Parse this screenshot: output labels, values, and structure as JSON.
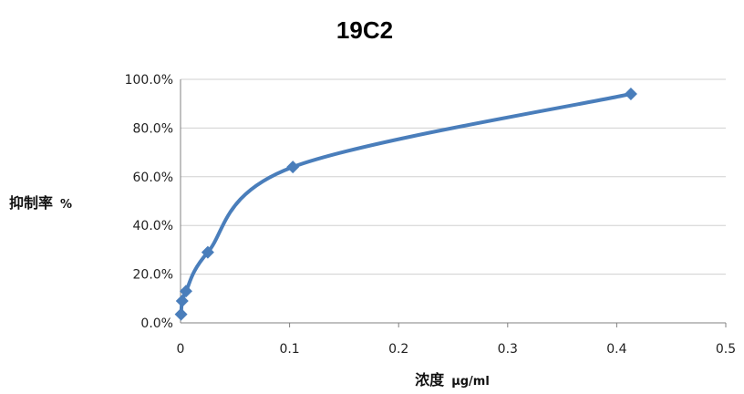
{
  "chart_data": {
    "type": "scatter",
    "title": "19C2",
    "xlabel": "浓度",
    "xlabel_unit": "μg/ml",
    "ylabel": "抑制率",
    "ylabel_unit": "%",
    "xlim": [
      0,
      0.5
    ],
    "ylim": [
      0,
      1.0
    ],
    "x_ticks": [
      "0",
      "0.1",
      "0.2",
      "0.3",
      "0.4",
      "0.5"
    ],
    "y_ticks": [
      "0.0%",
      "20.0%",
      "40.0%",
      "60.0%",
      "80.0%",
      "100.0%"
    ],
    "grid": "horizontal",
    "smooth_line": true,
    "series": [
      {
        "x": [
          0.0005,
          0.0015,
          0.005,
          0.025,
          0.103,
          0.413
        ],
        "y": [
          0.035,
          0.09,
          0.13,
          0.29,
          0.64,
          0.94
        ]
      }
    ],
    "colors": {
      "series": "#4a7ebb",
      "grid": "#d0d0d0",
      "axis": "#808080"
    }
  }
}
